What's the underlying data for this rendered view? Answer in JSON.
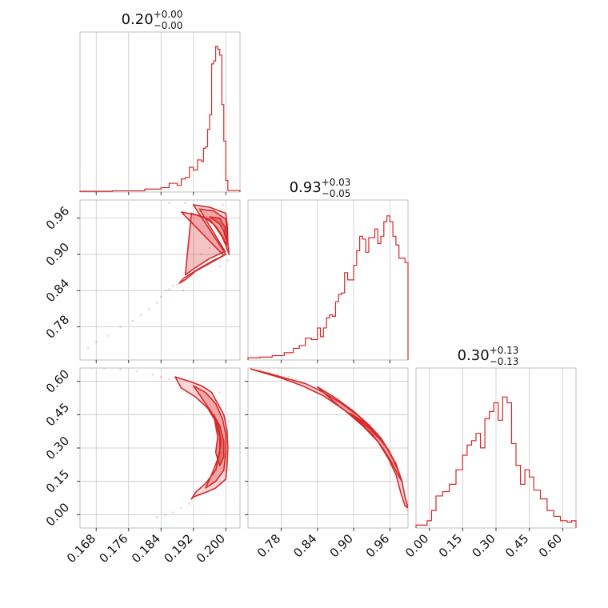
{
  "chart_data": {
    "type": "corner",
    "color": "#d62728",
    "grid": true,
    "parameters": [
      {
        "title": {
          "median": "0.20",
          "plus": "+0.00",
          "minus": "−0.00"
        },
        "range": [
          0.164,
          0.2035
        ],
        "ticks": [
          0.168,
          0.176,
          0.184,
          0.192,
          0.2
        ],
        "tick_labels": [
          "0.168",
          "0.176",
          "0.184",
          "0.192",
          "0.200"
        ]
      },
      {
        "title": {
          "median": "0.93",
          "plus": "+0.03",
          "minus": "−0.05"
        },
        "range": [
          0.725,
          0.99
        ],
        "ticks": [
          0.78,
          0.84,
          0.9,
          0.96
        ],
        "tick_labels": [
          "0.78",
          "0.84",
          "0.90",
          "0.96"
        ]
      },
      {
        "title": {
          "median": "0.30",
          "plus": "+0.13",
          "minus": "−0.13"
        },
        "range": [
          -0.06,
          0.66
        ],
        "ticks": [
          0.0,
          0.15,
          0.3,
          0.45,
          0.6
        ],
        "tick_labels": [
          "0.00",
          "0.15",
          "0.30",
          "0.45",
          "0.60"
        ]
      }
    ],
    "histograms": [
      {
        "param": 0,
        "bin_edges": [
          0.164,
          0.172,
          0.18,
          0.184,
          0.186,
          0.188,
          0.189,
          0.19,
          0.191,
          0.192,
          0.193,
          0.194,
          0.1945,
          0.195,
          0.1955,
          0.196,
          0.1965,
          0.197,
          0.1975,
          0.198,
          0.1985,
          0.199,
          0.1995,
          0.2,
          0.2005,
          0.2035
        ],
        "counts": [
          0.005,
          0.008,
          0.02,
          0.03,
          0.06,
          0.045,
          0.09,
          0.1,
          0.17,
          0.15,
          0.22,
          0.21,
          0.3,
          0.31,
          0.43,
          0.53,
          0.88,
          0.9,
          1.0,
          0.98,
          0.94,
          0.6,
          0.35,
          0.08,
          0.01
        ]
      },
      {
        "param": 1,
        "bin_edges": [
          0.725,
          0.745,
          0.765,
          0.785,
          0.8,
          0.81,
          0.82,
          0.83,
          0.84,
          0.845,
          0.85,
          0.855,
          0.86,
          0.865,
          0.87,
          0.875,
          0.88,
          0.885,
          0.89,
          0.895,
          0.9,
          0.905,
          0.91,
          0.915,
          0.92,
          0.925,
          0.93,
          0.935,
          0.94,
          0.945,
          0.95,
          0.955,
          0.96,
          0.965,
          0.97,
          0.975,
          0.98,
          0.985,
          0.99
        ],
        "counts": [
          0.015,
          0.02,
          0.03,
          0.05,
          0.08,
          0.1,
          0.15,
          0.14,
          0.22,
          0.16,
          0.22,
          0.29,
          0.31,
          0.3,
          0.4,
          0.45,
          0.46,
          0.6,
          0.55,
          0.55,
          0.65,
          0.75,
          0.85,
          0.83,
          0.74,
          0.84,
          0.84,
          0.9,
          0.8,
          0.85,
          0.95,
          0.99,
          0.95,
          0.85,
          0.79,
          0.7,
          0.7,
          0.67
        ]
      },
      {
        "param": 2,
        "bin_edges": [
          -0.06,
          -0.01,
          0.01,
          0.03,
          0.06,
          0.09,
          0.12,
          0.15,
          0.17,
          0.19,
          0.21,
          0.23,
          0.25,
          0.27,
          0.29,
          0.31,
          0.33,
          0.35,
          0.37,
          0.39,
          0.41,
          0.43,
          0.45,
          0.47,
          0.5,
          0.53,
          0.56,
          0.59,
          0.62,
          0.64,
          0.66
        ],
        "counts": [
          0.02,
          0.05,
          0.12,
          0.22,
          0.25,
          0.3,
          0.4,
          0.5,
          0.57,
          0.6,
          0.65,
          0.55,
          0.75,
          0.8,
          0.86,
          0.74,
          0.9,
          0.86,
          0.58,
          0.43,
          0.3,
          0.4,
          0.35,
          0.26,
          0.2,
          0.12,
          0.08,
          0.05,
          0.04,
          0.05
        ]
      }
    ],
    "joint_curves": [
      {
        "x_param": 0,
        "y_param": 1,
        "outer": [
          [
            0.189,
            0.97
          ],
          [
            0.193,
            0.965
          ],
          [
            0.196,
            0.958
          ],
          [
            0.1975,
            0.945
          ],
          [
            0.199,
            0.93
          ],
          [
            0.2,
            0.915
          ],
          [
            0.2008,
            0.9
          ],
          [
            0.2005,
            0.92
          ],
          [
            0.2004,
            0.945
          ],
          [
            0.2,
            0.968
          ],
          [
            0.196,
            0.978
          ],
          [
            0.192,
            0.982
          ],
          [
            0.2,
            0.9
          ],
          [
            0.197,
            0.89
          ],
          [
            0.193,
            0.875
          ],
          [
            0.1895,
            0.86
          ],
          [
            0.1885,
            0.852
          ],
          [
            0.19,
            0.858
          ],
          [
            0.1925,
            0.872
          ],
          [
            0.196,
            0.885
          ],
          [
            0.1995,
            0.898
          ]
        ],
        "mid": [
          [
            0.1915,
            0.968
          ],
          [
            0.195,
            0.96
          ],
          [
            0.1975,
            0.947
          ],
          [
            0.1992,
            0.93
          ],
          [
            0.2002,
            0.915
          ],
          [
            0.2003,
            0.935
          ],
          [
            0.2,
            0.958
          ],
          [
            0.197,
            0.972
          ],
          [
            0.1935,
            0.975
          ],
          [
            0.1998,
            0.905
          ],
          [
            0.196,
            0.893
          ],
          [
            0.1925,
            0.878
          ],
          [
            0.19,
            0.866
          ]
        ],
        "inner": [
          [
            0.196,
            0.962
          ],
          [
            0.1985,
            0.95
          ],
          [
            0.1995,
            0.938
          ],
          [
            0.2,
            0.925
          ],
          [
            0.1998,
            0.945
          ],
          [
            0.1985,
            0.96
          ]
        ],
        "scatter": [
          [
            0.186,
            0.842
          ],
          [
            0.1852,
            0.84
          ],
          [
            0.184,
            0.83
          ],
          [
            0.183,
            0.82
          ],
          [
            0.181,
            0.81
          ],
          [
            0.179,
            0.8
          ],
          [
            0.177,
            0.79
          ],
          [
            0.174,
            0.78
          ],
          [
            0.171,
            0.765
          ],
          [
            0.168,
            0.755
          ],
          [
            0.166,
            0.745
          ],
          [
            0.187,
            0.848
          ],
          [
            0.188,
            0.85
          ],
          [
            0.1895,
            0.84
          ],
          [
            0.196,
            0.91
          ],
          [
            0.1985,
            0.88
          ],
          [
            0.2005,
            0.89
          ],
          [
            0.2008,
            0.95
          ],
          [
            0.1992,
            0.982
          ],
          [
            0.19,
            0.985
          ],
          [
            0.186,
            0.985
          ],
          [
            0.194,
            0.9
          ]
        ]
      },
      {
        "x_param": 0,
        "y_param": 2,
        "outer": [
          [
            0.1875,
            0.62
          ],
          [
            0.191,
            0.6
          ],
          [
            0.194,
            0.58
          ],
          [
            0.1965,
            0.55
          ],
          [
            0.198,
            0.5
          ],
          [
            0.1995,
            0.45
          ],
          [
            0.2003,
            0.38
          ],
          [
            0.2005,
            0.3
          ],
          [
            0.2003,
            0.22
          ],
          [
            0.2,
            0.16
          ],
          [
            0.1975,
            0.12
          ],
          [
            0.195,
            0.1
          ],
          [
            0.192,
            0.08
          ],
          [
            0.1915,
            0.07
          ],
          [
            0.1925,
            0.1
          ],
          [
            0.195,
            0.14
          ],
          [
            0.1975,
            0.2
          ],
          [
            0.1985,
            0.28
          ],
          [
            0.1985,
            0.35
          ],
          [
            0.1975,
            0.42
          ],
          [
            0.1955,
            0.48
          ],
          [
            0.1925,
            0.53
          ],
          [
            0.189,
            0.57
          ]
        ],
        "mid": [
          [
            0.192,
            0.58
          ],
          [
            0.195,
            0.55
          ],
          [
            0.1975,
            0.5
          ],
          [
            0.1992,
            0.43
          ],
          [
            0.2,
            0.36
          ],
          [
            0.2,
            0.28
          ],
          [
            0.1995,
            0.2
          ],
          [
            0.1975,
            0.15
          ],
          [
            0.195,
            0.12
          ],
          [
            0.1965,
            0.18
          ],
          [
            0.198,
            0.25
          ],
          [
            0.1988,
            0.32
          ],
          [
            0.1982,
            0.4
          ],
          [
            0.1965,
            0.46
          ]
        ],
        "inner": [
          [
            0.197,
            0.45
          ],
          [
            0.1985,
            0.4
          ],
          [
            0.1995,
            0.33
          ],
          [
            0.1995,
            0.26
          ],
          [
            0.1985,
            0.22
          ],
          [
            0.1975,
            0.28
          ],
          [
            0.198,
            0.35
          ]
        ],
        "scatter": [
          [
            0.186,
            0.61
          ],
          [
            0.184,
            0.62
          ],
          [
            0.182,
            0.63
          ],
          [
            0.178,
            0.645
          ],
          [
            0.174,
            0.655
          ],
          [
            0.17,
            0.66
          ],
          [
            0.167,
            0.662
          ],
          [
            0.191,
            0.05
          ],
          [
            0.189,
            0.03
          ],
          [
            0.187,
            0.01
          ],
          [
            0.185,
            0.0
          ],
          [
            0.183,
            -0.01
          ],
          [
            0.2008,
            0.2
          ],
          [
            0.2008,
            0.42
          ],
          [
            0.1985,
            0.55
          ]
        ]
      },
      {
        "x_param": 1,
        "y_param": 2,
        "outer": [
          [
            0.73,
            0.655
          ],
          [
            0.76,
            0.635
          ],
          [
            0.79,
            0.612
          ],
          [
            0.82,
            0.59
          ],
          [
            0.85,
            0.55
          ],
          [
            0.88,
            0.5
          ],
          [
            0.91,
            0.44
          ],
          [
            0.935,
            0.37
          ],
          [
            0.955,
            0.3
          ],
          [
            0.97,
            0.23
          ],
          [
            0.98,
            0.15
          ],
          [
            0.985,
            0.08
          ],
          [
            0.99,
            0.03
          ],
          [
            0.985,
            0.04
          ],
          [
            0.978,
            0.1
          ],
          [
            0.97,
            0.18
          ],
          [
            0.958,
            0.25
          ],
          [
            0.94,
            0.33
          ],
          [
            0.915,
            0.4
          ],
          [
            0.885,
            0.47
          ],
          [
            0.85,
            0.535
          ],
          [
            0.815,
            0.58
          ],
          [
            0.78,
            0.615
          ]
        ],
        "mid": [
          [
            0.84,
            0.575
          ],
          [
            0.87,
            0.525
          ],
          [
            0.9,
            0.465
          ],
          [
            0.925,
            0.405
          ],
          [
            0.945,
            0.345
          ],
          [
            0.96,
            0.28
          ],
          [
            0.972,
            0.21
          ],
          [
            0.98,
            0.15
          ],
          [
            0.975,
            0.17
          ],
          [
            0.962,
            0.24
          ],
          [
            0.948,
            0.3
          ],
          [
            0.93,
            0.365
          ],
          [
            0.905,
            0.43
          ],
          [
            0.875,
            0.49
          ]
        ],
        "inner": [
          [
            0.895,
            0.455
          ],
          [
            0.918,
            0.415
          ],
          [
            0.94,
            0.36
          ],
          [
            0.955,
            0.3
          ],
          [
            0.965,
            0.25
          ],
          [
            0.958,
            0.29
          ],
          [
            0.945,
            0.335
          ],
          [
            0.925,
            0.39
          ]
        ],
        "scatter": [
          [
            0.73,
            0.66
          ],
          [
            0.745,
            0.65
          ],
          [
            0.76,
            0.64
          ],
          [
            0.775,
            0.63
          ],
          [
            0.792,
            0.62
          ],
          [
            0.805,
            0.61
          ],
          [
            0.988,
            0.02
          ],
          [
            0.99,
            0.06
          ]
        ]
      }
    ]
  }
}
